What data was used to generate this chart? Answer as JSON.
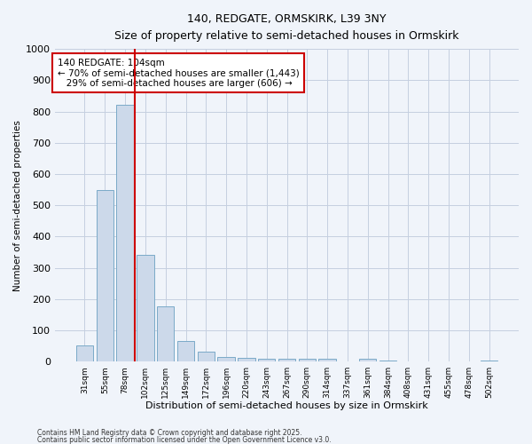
{
  "title1": "140, REDGATE, ORMSKIRK, L39 3NY",
  "title2": "Size of property relative to semi-detached houses in Ormskirk",
  "xlabel": "Distribution of semi-detached houses by size in Ormskirk",
  "ylabel": "Number of semi-detached properties",
  "categories": [
    "31sqm",
    "55sqm",
    "78sqm",
    "102sqm",
    "125sqm",
    "149sqm",
    "172sqm",
    "196sqm",
    "220sqm",
    "243sqm",
    "267sqm",
    "290sqm",
    "314sqm",
    "337sqm",
    "361sqm",
    "384sqm",
    "408sqm",
    "431sqm",
    "455sqm",
    "478sqm",
    "502sqm"
  ],
  "values": [
    50,
    550,
    820,
    340,
    175,
    65,
    32,
    15,
    13,
    10,
    10,
    10,
    10,
    0,
    10,
    3,
    0,
    0,
    0,
    0,
    3
  ],
  "bar_color": "#ccd9ea",
  "bar_edge_color": "#7aaac8",
  "grid_color": "#c5cfe0",
  "vline_color": "#cc0000",
  "vline_x": 2.5,
  "annotation_text": "140 REDGATE: 104sqm\n← 70% of semi-detached houses are smaller (1,443)\n   29% of semi-detached houses are larger (606) →",
  "annotation_box_color": "#ffffff",
  "annotation_box_edge_color": "#cc0000",
  "ylim": [
    0,
    1000
  ],
  "yticks": [
    0,
    100,
    200,
    300,
    400,
    500,
    600,
    700,
    800,
    900,
    1000
  ],
  "footer1": "Contains HM Land Registry data © Crown copyright and database right 2025.",
  "footer2": "Contains public sector information licensed under the Open Government Licence v3.0.",
  "bg_color": "#f0f4fa"
}
